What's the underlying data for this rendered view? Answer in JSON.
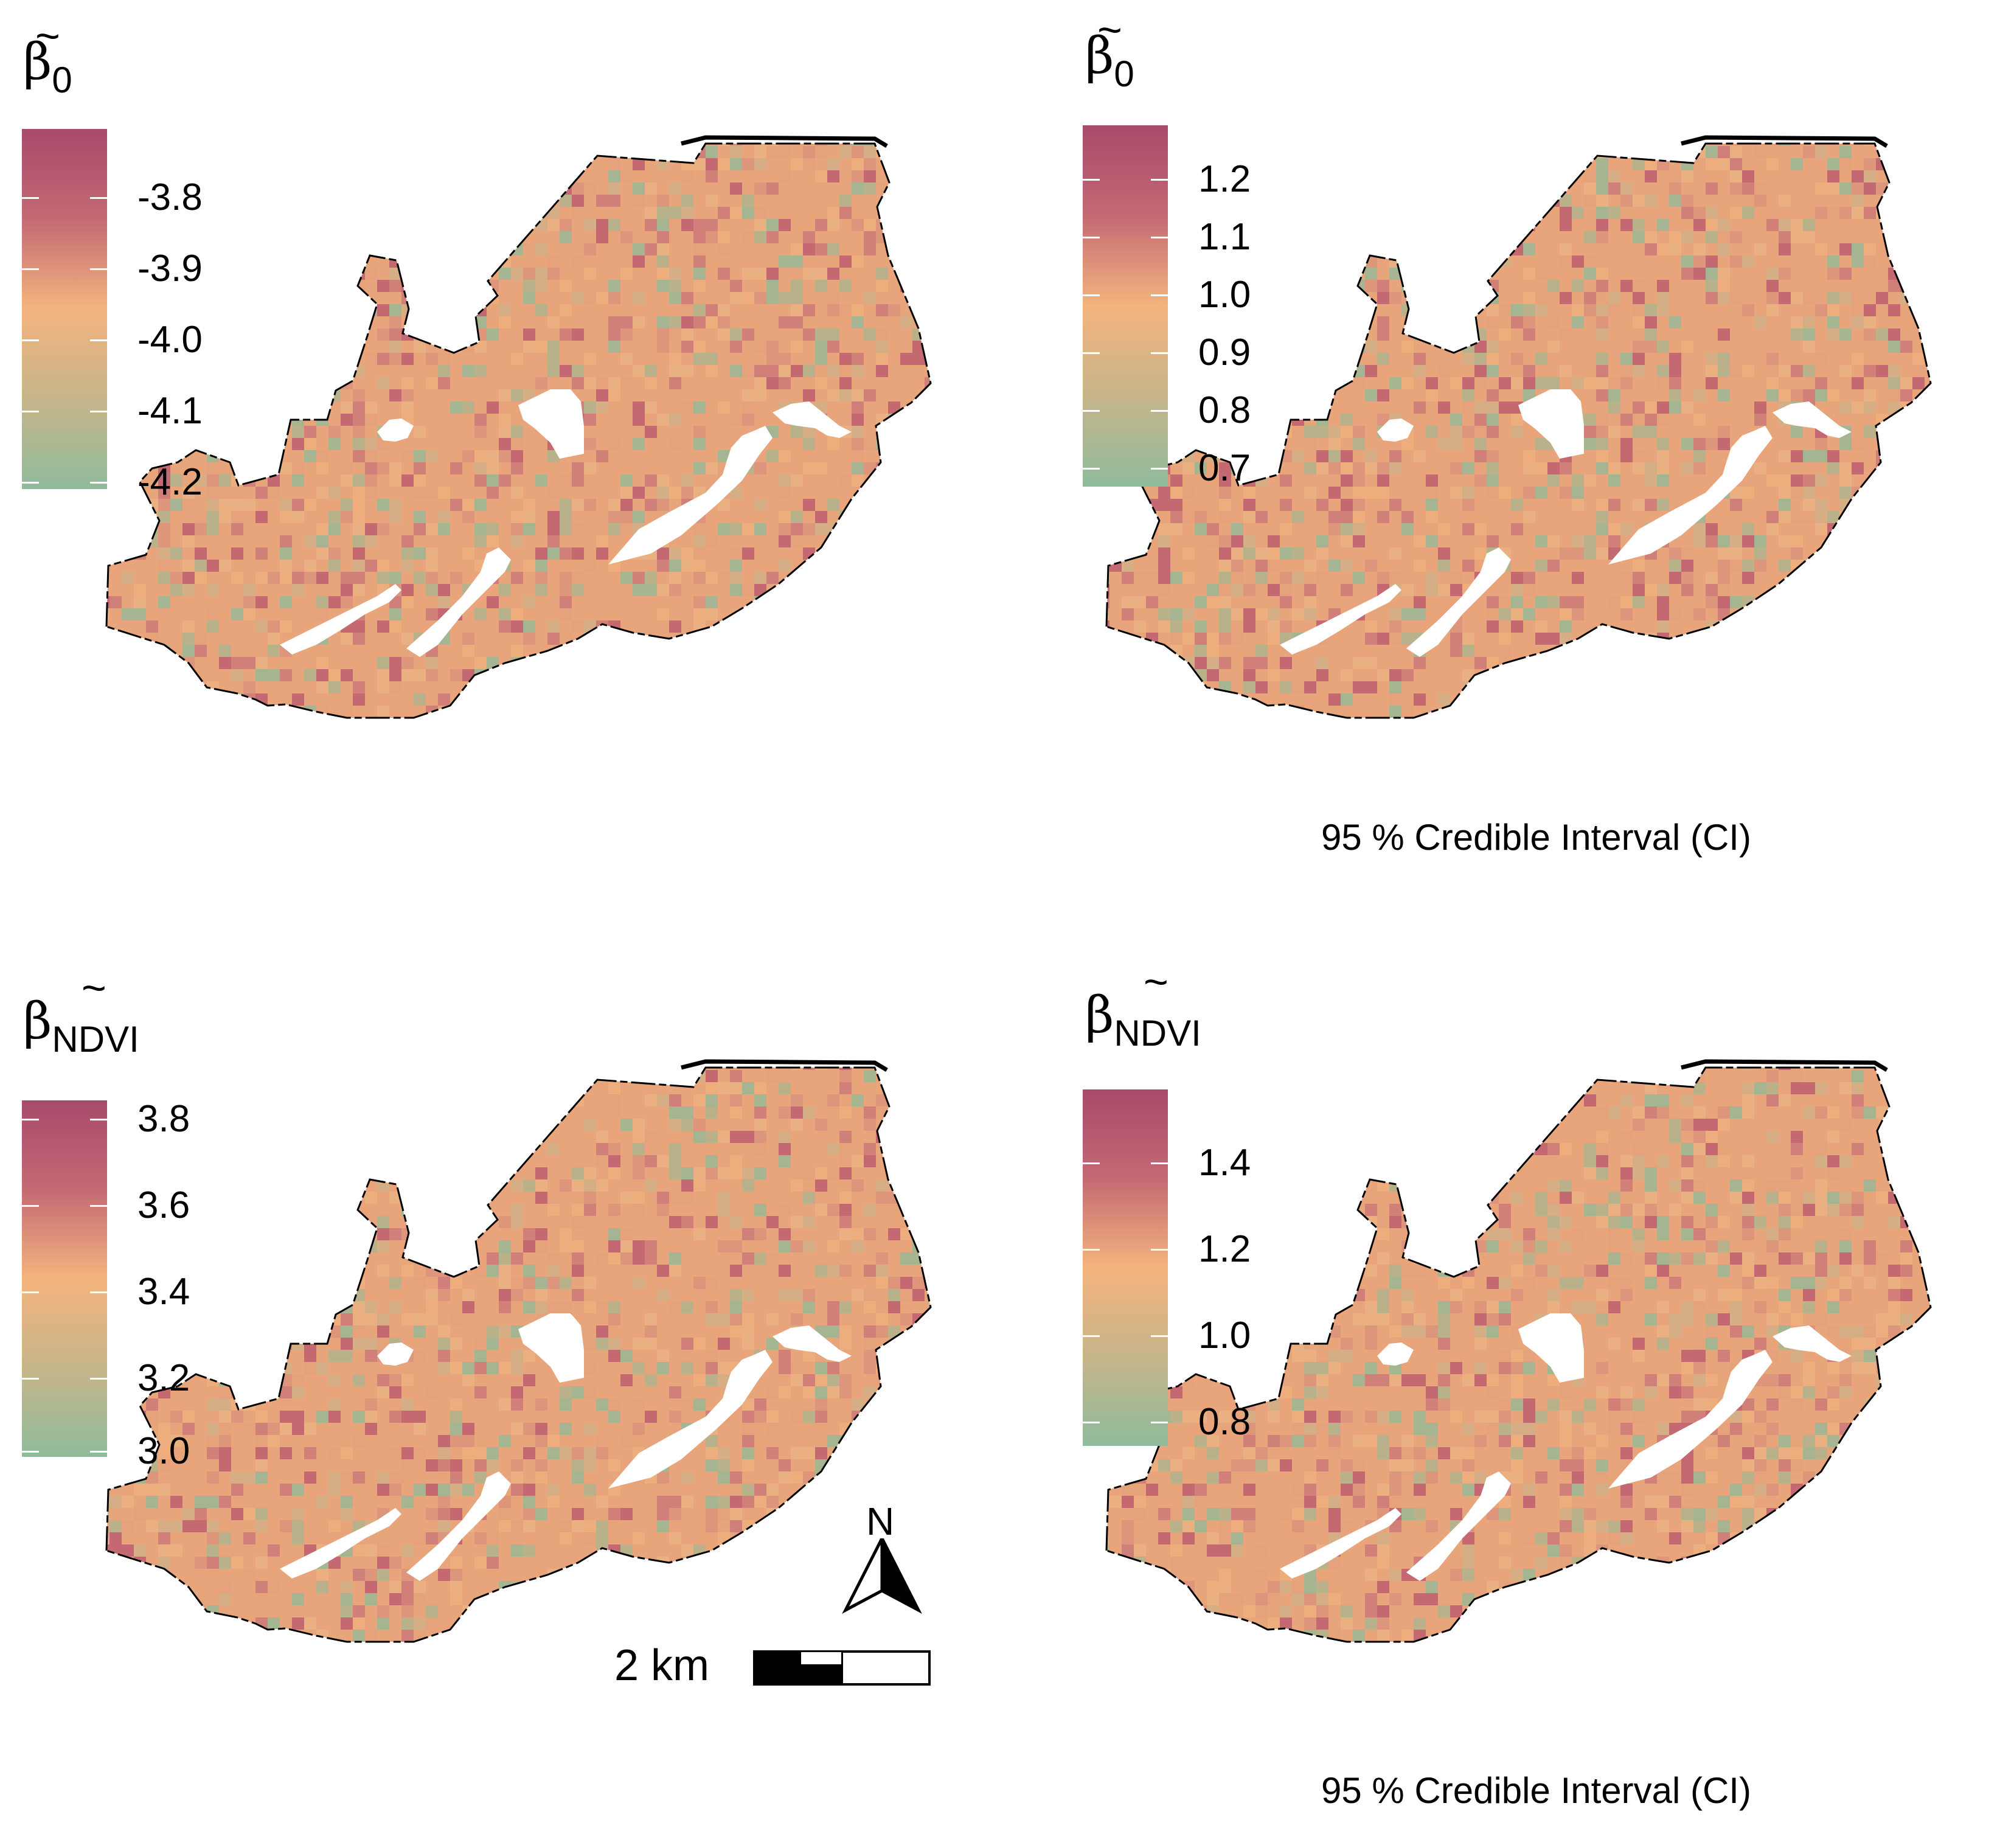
{
  "panels": [
    {
      "id": "p1",
      "title_symbol": "β",
      "title_subscript": "0",
      "legend_ticks": [
        "-3.8",
        "-3.9",
        "-4.0",
        "-4.1",
        "-4.2"
      ],
      "caption": ""
    },
    {
      "id": "p2",
      "title_symbol": "β",
      "title_subscript": "0",
      "legend_ticks": [
        "1.2",
        "1.1",
        "1.0",
        "0.9",
        "0.8",
        "0.7"
      ],
      "caption": "95 % Credible Interval (CI)"
    },
    {
      "id": "p3",
      "title_symbol": "β",
      "title_subscript": "NDVI",
      "legend_ticks": [
        "3.8",
        "3.6",
        "3.4",
        "3.2",
        "3.0"
      ],
      "caption": ""
    },
    {
      "id": "p4",
      "title_symbol": "β",
      "title_subscript": "NDVI",
      "legend_ticks": [
        "1.4",
        "1.2",
        "1.0",
        "0.8"
      ],
      "caption": "95 % Credible Interval (CI)"
    }
  ],
  "tilde": "~",
  "north_arrow": {
    "label": "N"
  },
  "scale_bar": {
    "label": "2 km"
  },
  "colors": {
    "high": "#a84a6b",
    "mid": "#f4b47e",
    "low": "#8fbb9b",
    "outline": "#000000"
  }
}
